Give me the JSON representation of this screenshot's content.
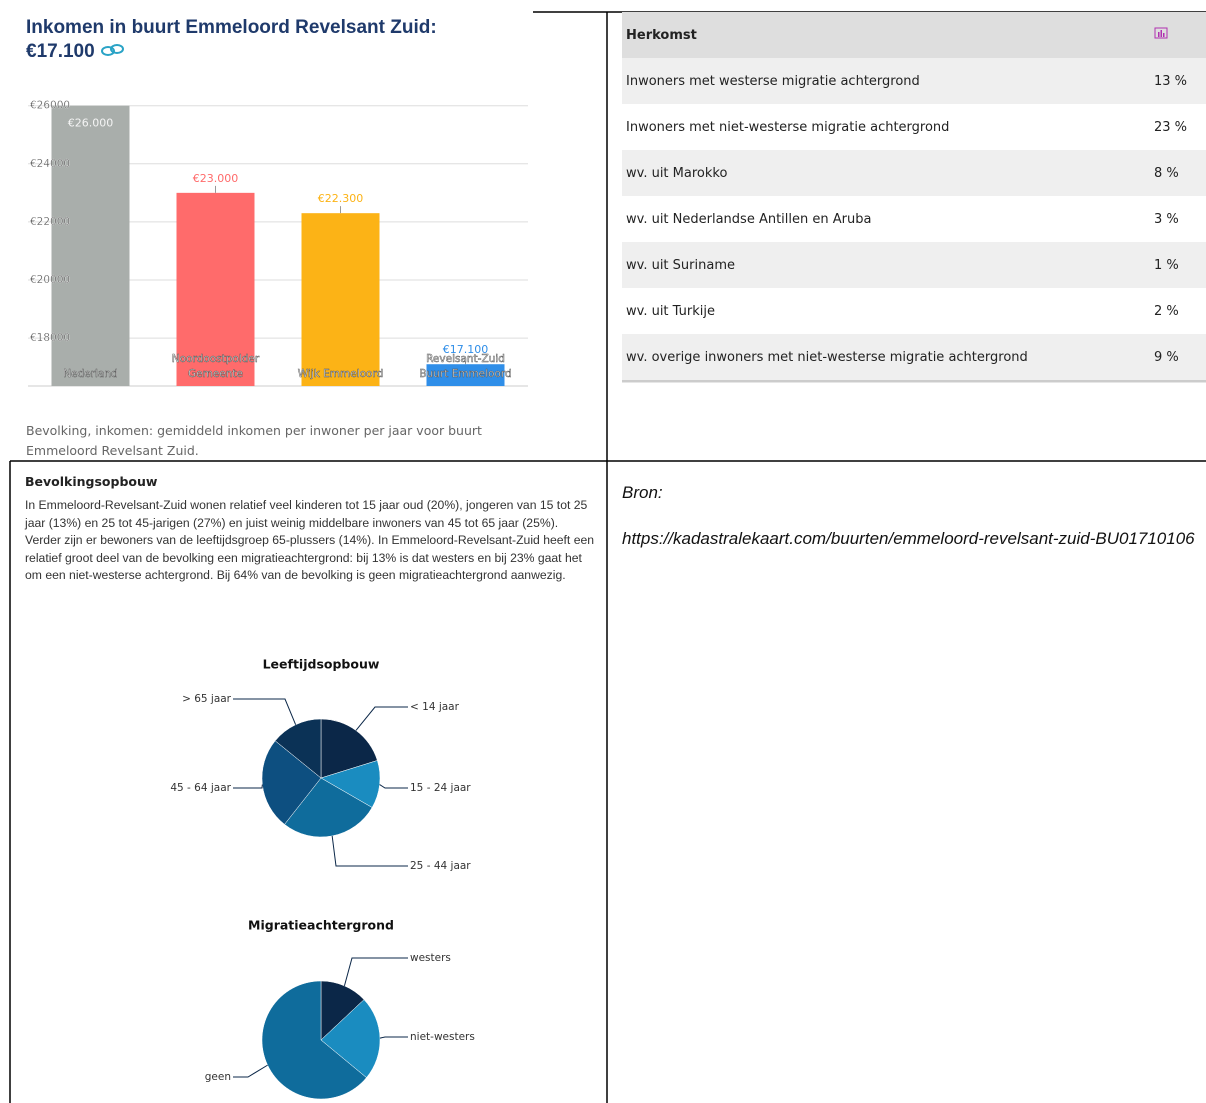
{
  "chart_data": [
    {
      "type": "bar",
      "title": "Inkomen in buurt Emmeloord Revelsant Zuid:",
      "subtitle": "€17.100",
      "categories": [
        [
          "Nederland"
        ],
        [
          "Noordoostpolder",
          "Gemeente"
        ],
        [
          "Wijk Emmeloord"
        ],
        [
          "Revelsant-Zuid",
          "Buurt Emmeloord"
        ]
      ],
      "values": [
        26000,
        23000,
        22300,
        17100
      ],
      "value_labels": [
        "€26.000",
        "€23.000",
        "€22.300",
        "€17.100"
      ],
      "colors": [
        "#a9aeab",
        "#ff6b6b",
        "#fcb316",
        "#2f8ee8"
      ],
      "ylim": [
        16350,
        26300
      ],
      "yticks": [
        {
          "value": 18000,
          "label": "€18000"
        },
        {
          "value": 20000,
          "label": "€20000"
        },
        {
          "value": 22000,
          "label": "€22000"
        },
        {
          "value": 24000,
          "label": "€24000"
        },
        {
          "value": 26000,
          "label": "€26000"
        }
      ],
      "grid": true,
      "caption": "Bevolking, inkomen: gemiddeld inkomen per inwoner per jaar voor buurt Emmeloord Revelsant Zuid."
    },
    {
      "type": "pie",
      "title": "Leeftijdsopbouw",
      "categories": [
        "< 14 jaar",
        "15 - 24 jaar",
        "25 - 44 jaar",
        "45 - 64 jaar",
        "> 65 jaar"
      ],
      "values": [
        20,
        13,
        27,
        25,
        14
      ],
      "colors": [
        "#0b2748",
        "#1a8cc0",
        "#0f6c9c",
        "#0d4f80",
        "#0b3256"
      ]
    },
    {
      "type": "pie",
      "title": "Migratieachtergrond",
      "categories": [
        "westers",
        "niet-westers",
        "geen"
      ],
      "values": [
        13,
        23,
        64
      ],
      "colors": [
        "#0b2748",
        "#1a8cc0",
        "#0f6c9c"
      ]
    }
  ],
  "table": {
    "header": "Herkomst",
    "rows": [
      [
        "Inwoners met westerse migratie achtergrond",
        "13 %"
      ],
      [
        "Inwoners met niet-westerse migratie achtergrond",
        "23 %"
      ],
      [
        "wv. uit Marokko",
        "8 %"
      ],
      [
        "wv. uit Nederlandse Antillen en Aruba",
        "3 %"
      ],
      [
        "wv. uit Suriname",
        "1 %"
      ],
      [
        "wv. uit Turkije",
        "2 %"
      ],
      [
        "wv. overige inwoners met niet-westerse migratie achtergrond",
        "9 %"
      ]
    ]
  },
  "section": {
    "title": "Bevolkingsopbouw",
    "text": "In Emmeloord-Revelsant-Zuid wonen relatief veel kinderen tot 15 jaar oud (20%), jongeren van 15 tot 25 jaar (13%) en 25 tot 45-jarigen (27%) en juist weinig middelbare inwoners van 45 tot 65 jaar (25%). Verder zijn er bewoners van de leeftijdsgroep 65-plussers (14%). In Emmeloord-Revelsant-Zuid heeft een relatief groot deel van de bevolking een migratieachtergrond: bij 13% is dat westers en bij 23% gaat het om een niet-westerse achtergrond. Bij 64% van de bevolking is geen migratieachtergrond aanwezig."
  },
  "source": {
    "label": "Bron:",
    "url": "https://kadastralekaart.com/buurten/emmeloord-revelsant-zuid-BU01710106"
  }
}
